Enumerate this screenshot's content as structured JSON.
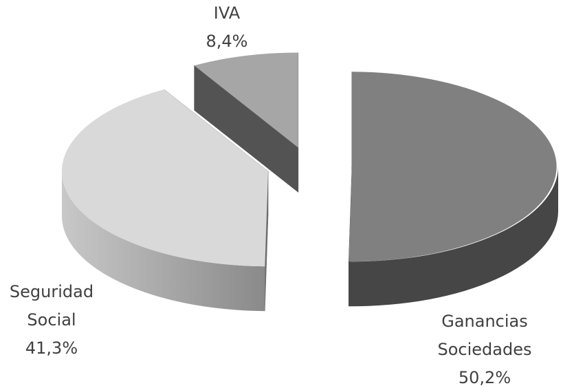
{
  "chart_data": {
    "type": "pie",
    "categories": [
      "Ganancias Sociedades",
      "Seguridad Social",
      "IVA"
    ],
    "values": [
      50.2,
      41.3,
      8.4
    ],
    "value_labels": [
      "50,2%",
      "41,3%",
      "8,4%"
    ],
    "colors": [
      "#808080",
      "#d9d9d9",
      "#a6a6a6"
    ]
  }
}
